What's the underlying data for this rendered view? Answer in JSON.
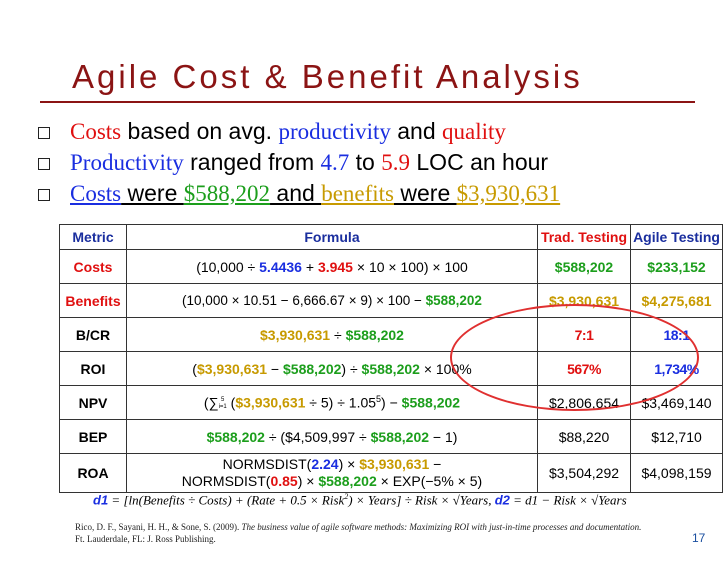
{
  "slide": {
    "title": "Agile Cost & Benefit Analysis",
    "page_number": "17"
  },
  "bullets": [
    {
      "parts": [
        "Costs",
        " based on avg. ",
        "productivity",
        " and ",
        "quality"
      ]
    },
    {
      "parts": [
        "Productivity",
        " ranged from ",
        "4.7",
        " to ",
        "5.9",
        " LOC an hour"
      ]
    },
    {
      "parts": [
        "Costs",
        " were ",
        "$588,202",
        " and ",
        "benefits",
        " were ",
        "$3,930,631"
      ]
    }
  ],
  "table": {
    "headers": [
      "Metric",
      "Formula",
      "Trad. Testing",
      "Agile Testing"
    ],
    "rows": [
      {
        "metric": "Costs",
        "formula": [
          "(10,000 ÷ ",
          "5.4436",
          " + ",
          "3.945",
          " × 10 × 100) × 100"
        ],
        "trad": "$588,202",
        "agile": "$233,152"
      },
      {
        "metric": "Benefits",
        "formula": [
          "(10,000 × 10.51 − 6,666.67 × 9) × 100 − ",
          "$588,202"
        ],
        "trad": "$3,930,631",
        "agile": "$4,275,681"
      },
      {
        "metric": "B/CR",
        "formula": [
          "$3,930,631",
          " ÷ ",
          "$588,202"
        ],
        "trad": "7:1",
        "agile": "18:1"
      },
      {
        "metric": "ROI",
        "formula": [
          "(",
          "$3,930,631",
          " − ",
          "$588,202",
          ") ÷ ",
          "$588,202",
          " × 100%"
        ],
        "trad": "567%",
        "agile": "1,734%"
      },
      {
        "metric": "NPV",
        "formula": [
          "(∑",
          "5",
          "i=1",
          " (",
          "$3,930,631",
          " ÷ 5) ÷ 1.05",
          "5",
          ") − ",
          "$588,202"
        ],
        "trad": "$2,806,654",
        "agile": "$3,469,140"
      },
      {
        "metric": "BEP",
        "formula": [
          "$588,202",
          " ÷ ($4,509,997 ÷ ",
          "$588,202",
          " − 1)"
        ],
        "trad": "$88,220",
        "agile": "$12,710"
      },
      {
        "metric": "ROA",
        "formula": [
          "NORMSDIST(",
          "2.24",
          ") × ",
          "$3,930,631",
          " −",
          "NORMSDIST(",
          "0.85",
          ") × ",
          "$588,202",
          " × EXP(−5% × 5)"
        ],
        "trad": "$3,504,292",
        "agile": "$4,098,159"
      }
    ]
  },
  "equation": {
    "d1_label": "d1",
    "d1_expr": " = [ln(Benefits ÷ Costs) + (Rate + 0.5 × Risk",
    "sq": "2",
    "d1_rest": ") × Years] ÷ Risk × √Years,  ",
    "d2_label": "d2",
    "d2_expr": " = d1 − Risk × √Years"
  },
  "citation": {
    "line1": "Rico, D. F., Sayani, H. H., & Sone, S. (2009). ",
    "line1_italic": "The business value of agile software methods: Maximizing ROI with just-in-time processes and documentation.",
    "line2": "Ft. Lauderdale, FL: J. Ross Publishing."
  },
  "colors": {
    "title": "#8b1414",
    "red": "#e01010",
    "blue": "#1a2ee0",
    "green": "#1c9e1c",
    "gold": "#c79a00",
    "ellipse": "#e03030"
  }
}
